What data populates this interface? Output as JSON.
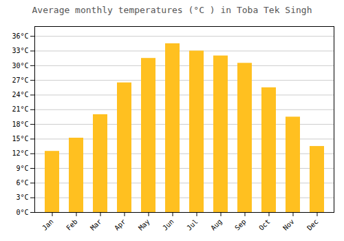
{
  "chart_data": {
    "type": "bar",
    "title": "Average monthly temperatures (°C ) in Toba Tek Singh",
    "categories": [
      "Jan",
      "Feb",
      "Mar",
      "Apr",
      "May",
      "Jun",
      "Jul",
      "Aug",
      "Sep",
      "Oct",
      "Nov",
      "Dec"
    ],
    "values": [
      12.5,
      15.2,
      20.0,
      26.5,
      31.5,
      34.5,
      33.0,
      32.0,
      30.5,
      25.5,
      19.5,
      13.5
    ],
    "color": "#FFC020",
    "ylim": [
      0,
      38
    ],
    "yticks": [
      {
        "value": 0,
        "label": "0°C"
      },
      {
        "value": 3,
        "label": "3°C"
      },
      {
        "value": 6,
        "label": "6°C"
      },
      {
        "value": 9,
        "label": "9°C"
      },
      {
        "value": 12,
        "label": "12°C"
      },
      {
        "value": 15,
        "label": "15°C"
      },
      {
        "value": 18,
        "label": "18°C"
      },
      {
        "value": 21,
        "label": "21°C"
      },
      {
        "value": 24,
        "label": "24°C"
      },
      {
        "value": 27,
        "label": "27°C"
      },
      {
        "value": 30,
        "label": "30°C"
      },
      {
        "value": 33,
        "label": "33°C"
      },
      {
        "value": 36,
        "label": "36°C"
      }
    ],
    "grid": true
  }
}
